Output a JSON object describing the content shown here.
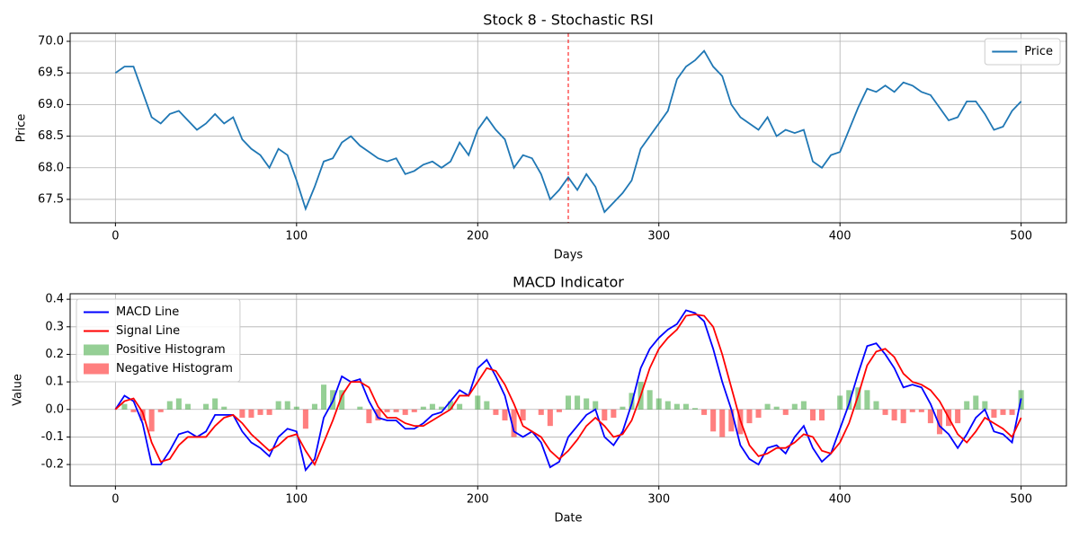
{
  "chart_data": [
    {
      "type": "line",
      "title": "Stock 8 - Stochastic RSI",
      "xlabel": "Days",
      "ylabel": "Price",
      "x": [
        0,
        5,
        10,
        15,
        20,
        25,
        30,
        35,
        40,
        45,
        50,
        55,
        60,
        65,
        70,
        75,
        80,
        85,
        90,
        95,
        100,
        105,
        110,
        115,
        120,
        125,
        130,
        135,
        140,
        145,
        150,
        155,
        160,
        165,
        170,
        175,
        180,
        185,
        190,
        195,
        200,
        205,
        210,
        215,
        220,
        225,
        230,
        235,
        240,
        245,
        250,
        255,
        260,
        265,
        270,
        275,
        280,
        285,
        290,
        295,
        300,
        305,
        310,
        315,
        320,
        325,
        330,
        335,
        340,
        345,
        350,
        355,
        360,
        365,
        370,
        375,
        380,
        385,
        390,
        395,
        400,
        405,
        410,
        415,
        420,
        425,
        430,
        435,
        440,
        445,
        450,
        455,
        460,
        465,
        470,
        475,
        480,
        485,
        490,
        495,
        500
      ],
      "series": [
        {
          "name": "Price",
          "color": "#1f77b4",
          "values": [
            69.5,
            69.6,
            69.6,
            69.2,
            68.8,
            68.7,
            68.85,
            68.9,
            68.75,
            68.6,
            68.7,
            68.85,
            68.7,
            68.8,
            68.45,
            68.3,
            68.2,
            68.0,
            68.3,
            68.2,
            67.8,
            67.35,
            67.7,
            68.1,
            68.15,
            68.4,
            68.5,
            68.35,
            68.25,
            68.15,
            68.1,
            68.15,
            67.9,
            67.95,
            68.05,
            68.1,
            68.0,
            68.1,
            68.4,
            68.2,
            68.6,
            68.8,
            68.6,
            68.45,
            68.0,
            68.2,
            68.15,
            67.9,
            67.5,
            67.65,
            67.85,
            67.65,
            67.9,
            67.7,
            67.3,
            67.45,
            67.6,
            67.8,
            68.3,
            68.5,
            68.7,
            68.9,
            69.4,
            69.6,
            69.7,
            69.85,
            69.6,
            69.45,
            69.0,
            68.8,
            68.7,
            68.6,
            68.8,
            68.5,
            68.6,
            68.55,
            68.6,
            68.1,
            68.0,
            68.2,
            68.25,
            68.6,
            68.95,
            69.25,
            69.2,
            69.3,
            69.2,
            69.35,
            69.3,
            69.2,
            69.15,
            68.95,
            68.75,
            68.8,
            69.05,
            69.05,
            68.85,
            68.6,
            68.65,
            68.9,
            69.05
          ]
        }
      ],
      "vline": {
        "x": 250,
        "color": "#ff0000"
      },
      "xlim": [
        -25,
        525
      ],
      "ylim": [
        67.13,
        70.128
      ],
      "xticks": [
        0,
        100,
        200,
        300,
        400,
        500
      ],
      "yticks": [
        67.5,
        {
          "value": 68,
          "label": "68.0"
        },
        68.5,
        {
          "value": 69,
          "label": "69.0"
        },
        69.5,
        {
          "value": 70,
          "label": "70.0"
        }
      ],
      "grid": true,
      "legend": "upper right"
    },
    {
      "type": "line",
      "title": "MACD Indicator",
      "xlabel": "Date",
      "ylabel": "Value",
      "x": [
        0,
        5,
        10,
        15,
        20,
        25,
        30,
        35,
        40,
        45,
        50,
        55,
        60,
        65,
        70,
        75,
        80,
        85,
        90,
        95,
        100,
        105,
        110,
        115,
        120,
        125,
        130,
        135,
        140,
        145,
        150,
        155,
        160,
        165,
        170,
        175,
        180,
        185,
        190,
        195,
        200,
        205,
        210,
        215,
        220,
        225,
        230,
        235,
        240,
        245,
        250,
        255,
        260,
        265,
        270,
        275,
        280,
        285,
        290,
        295,
        300,
        305,
        310,
        315,
        320,
        325,
        330,
        335,
        340,
        345,
        350,
        355,
        360,
        365,
        370,
        375,
        380,
        385,
        390,
        395,
        400,
        405,
        410,
        415,
        420,
        425,
        430,
        435,
        440,
        445,
        450,
        455,
        460,
        465,
        470,
        475,
        480,
        485,
        490,
        495,
        500
      ],
      "series": [
        {
          "name": "MACD Line",
          "color": "#0000ff",
          "values": [
            0,
            0.05,
            0.03,
            -0.05,
            -0.2,
            -0.2,
            -0.15,
            -0.09,
            -0.08,
            -0.1,
            -0.08,
            -0.02,
            -0.02,
            -0.02,
            -0.08,
            -0.12,
            -0.14,
            -0.17,
            -0.1,
            -0.07,
            -0.08,
            -0.22,
            -0.18,
            -0.03,
            0.03,
            0.12,
            0.1,
            0.11,
            0.03,
            -0.03,
            -0.04,
            -0.04,
            -0.07,
            -0.07,
            -0.05,
            -0.02,
            -0.01,
            0.03,
            0.07,
            0.05,
            0.15,
            0.18,
            0.12,
            0.05,
            -0.08,
            -0.1,
            -0.08,
            -0.12,
            -0.21,
            -0.19,
            -0.1,
            -0.06,
            -0.02,
            0,
            -0.1,
            -0.13,
            -0.08,
            0.02,
            0.15,
            0.22,
            0.26,
            0.29,
            0.31,
            0.36,
            0.35,
            0.32,
            0.22,
            0.1,
            0,
            -0.13,
            -0.18,
            -0.2,
            -0.14,
            -0.13,
            -0.16,
            -0.1,
            -0.06,
            -0.14,
            -0.19,
            -0.16,
            -0.07,
            0.02,
            0.13,
            0.23,
            0.24,
            0.2,
            0.15,
            0.08,
            0.09,
            0.08,
            0.02,
            -0.06,
            -0.09,
            -0.14,
            -0.09,
            -0.03,
            0,
            -0.08,
            -0.09,
            -0.12,
            0.04
          ]
        },
        {
          "name": "Signal Line",
          "color": "#ff0000",
          "values": [
            0,
            0.03,
            0.04,
            -0.01,
            -0.12,
            -0.19,
            -0.18,
            -0.13,
            -0.1,
            -0.1,
            -0.1,
            -0.06,
            -0.03,
            -0.02,
            -0.05,
            -0.09,
            -0.12,
            -0.15,
            -0.13,
            -0.1,
            -0.09,
            -0.15,
            -0.2,
            -0.12,
            -0.04,
            0.05,
            0.1,
            0.1,
            0.08,
            0.01,
            -0.03,
            -0.03,
            -0.05,
            -0.06,
            -0.06,
            -0.04,
            -0.02,
            0,
            0.05,
            0.05,
            0.1,
            0.15,
            0.14,
            0.09,
            0.02,
            -0.06,
            -0.08,
            -0.1,
            -0.15,
            -0.18,
            -0.15,
            -0.11,
            -0.06,
            -0.03,
            -0.06,
            -0.1,
            -0.09,
            -0.04,
            0.05,
            0.15,
            0.22,
            0.26,
            0.29,
            0.34,
            0.345,
            0.34,
            0.3,
            0.2,
            0.08,
            -0.04,
            -0.13,
            -0.17,
            -0.16,
            -0.14,
            -0.14,
            -0.12,
            -0.09,
            -0.1,
            -0.15,
            -0.16,
            -0.12,
            -0.05,
            0.05,
            0.16,
            0.21,
            0.22,
            0.19,
            0.13,
            0.1,
            0.09,
            0.07,
            0.03,
            -0.03,
            -0.09,
            -0.12,
            -0.08,
            -0.03,
            -0.05,
            -0.07,
            -0.1,
            -0.03
          ]
        }
      ],
      "histogram": {
        "positive": {
          "name": "Positive Histogram",
          "color": "#2ca02c"
        },
        "negative": {
          "name": "Negative Histogram",
          "color": "#ff0000"
        },
        "values": [
          0,
          0.02,
          -0.01,
          -0.04,
          -0.08,
          -0.01,
          0.03,
          0.04,
          0.02,
          0,
          0.02,
          0.04,
          0.01,
          0,
          -0.03,
          -0.03,
          -0.02,
          -0.02,
          0.03,
          0.03,
          0.01,
          -0.07,
          0.02,
          0.09,
          0.07,
          0.07,
          0,
          0.01,
          -0.05,
          -0.04,
          -0.01,
          -0.01,
          -0.02,
          -0.01,
          0.01,
          0.02,
          0.01,
          0.03,
          0.02,
          0,
          0.05,
          0.03,
          -0.02,
          -0.04,
          -0.1,
          -0.04,
          0,
          -0.02,
          -0.06,
          -0.01,
          0.05,
          0.05,
          0.04,
          0.03,
          -0.04,
          -0.03,
          0.01,
          0.06,
          0.1,
          0.07,
          0.04,
          0.03,
          0.02,
          0.02,
          0.005,
          -0.02,
          -0.08,
          -0.1,
          -0.08,
          -0.09,
          -0.05,
          -0.03,
          0.02,
          0.01,
          -0.02,
          0.02,
          0.03,
          -0.04,
          -0.04,
          0,
          0.05,
          0.07,
          0.08,
          0.07,
          0.03,
          -0.02,
          -0.04,
          -0.05,
          -0.01,
          -0.01,
          -0.05,
          -0.09,
          -0.06,
          -0.05,
          0.03,
          0.05,
          0.03,
          -0.03,
          -0.02,
          -0.02,
          0.07
        ]
      },
      "xlim": [
        -25,
        525
      ],
      "ylim": [
        -0.278,
        0.42
      ],
      "xticks": [
        0,
        100,
        200,
        300,
        400,
        500
      ],
      "yticks": [
        -0.2,
        -0.1,
        {
          "value": 0,
          "label": "0.0"
        },
        0.1,
        0.2,
        0.3,
        0.4
      ],
      "grid": true,
      "legend": "upper left"
    }
  ]
}
